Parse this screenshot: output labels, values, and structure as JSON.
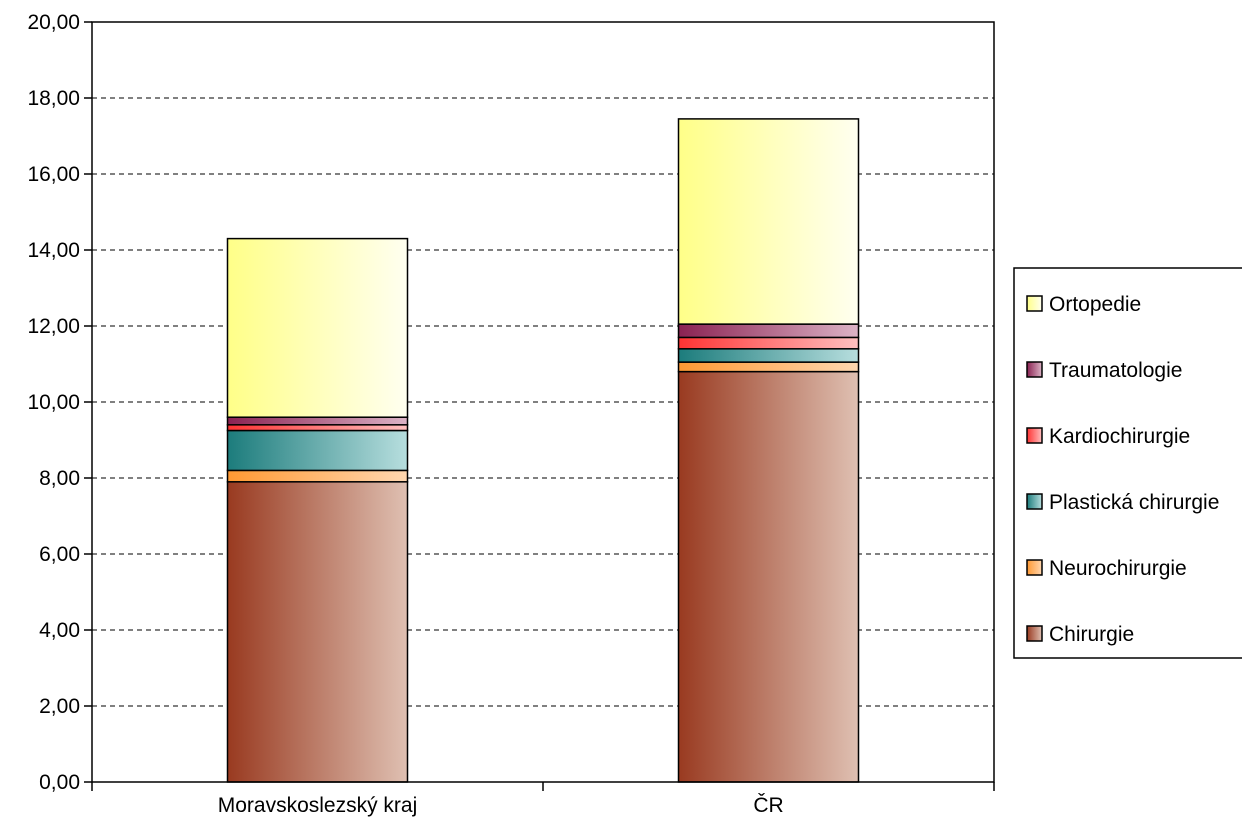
{
  "chart_data": {
    "type": "bar",
    "stacked": true,
    "categories": [
      "Moravskoslezský kraj",
      "ČR"
    ],
    "ylim": [
      0,
      20
    ],
    "yticks": [
      "0,00",
      "2,00",
      "4,00",
      "6,00",
      "8,00",
      "10,00",
      "12,00",
      "14,00",
      "16,00",
      "18,00",
      "20,00"
    ],
    "grid": true,
    "legend_position": "right",
    "series": [
      {
        "name": "Chirurgie",
        "values": [
          7.9,
          10.8
        ],
        "color_dark": "#993a20",
        "color_light": "#dfc0b2"
      },
      {
        "name": "Neurochirurgie",
        "values": [
          0.3,
          0.25
        ],
        "color_dark": "#ff9933",
        "color_light": "#ffd7b0"
      },
      {
        "name": "Plastická chirurgie",
        "values": [
          1.05,
          0.35
        ],
        "color_dark": "#1c7c7c",
        "color_light": "#b7dede"
      },
      {
        "name": "Kardiochirurgie",
        "values": [
          0.15,
          0.3
        ],
        "color_dark": "#ff3333",
        "color_light": "#ffc0c0"
      },
      {
        "name": "Traumatologie",
        "values": [
          0.2,
          0.35
        ],
        "color_dark": "#8a2252",
        "color_light": "#dcb3c6"
      },
      {
        "name": "Ortopedie",
        "values": [
          4.7,
          5.4
        ],
        "color_dark": "#ffff88",
        "color_light": "#fffff0"
      }
    ]
  }
}
